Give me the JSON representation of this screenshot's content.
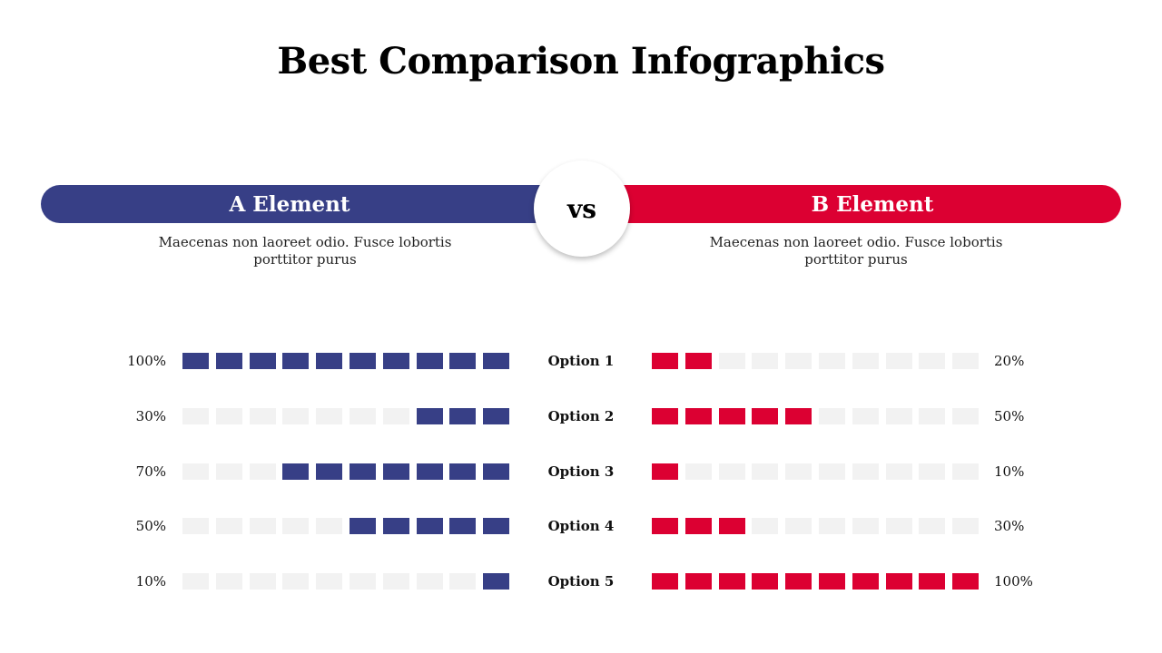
{
  "title": "Best Comparison Infographics",
  "colors": {
    "a": "#373f86",
    "b": "#dc0032",
    "empty": "#f2f2f2"
  },
  "vs_label": "vs",
  "element_a": {
    "label": "A Element",
    "description": "Maecenas non laoreet odio. Fusce lobortis porttitor purus"
  },
  "element_b": {
    "label": "B Element",
    "description": "Maecenas non laoreet odio. Fusce lobortis porttitor purus"
  },
  "rows": [
    {
      "option": "Option 1",
      "a_label": "100%",
      "a_value": 100,
      "b_label": "20%",
      "b_value": 20
    },
    {
      "option": "Option 2",
      "a_label": "30%",
      "a_value": 30,
      "b_label": "50%",
      "b_value": 50
    },
    {
      "option": "Option 3",
      "a_label": "70%",
      "a_value": 70,
      "b_label": "10%",
      "b_value": 10
    },
    {
      "option": "Option 4",
      "a_label": "50%",
      "a_value": 50,
      "b_label": "30%",
      "b_value": 30
    },
    {
      "option": "Option 5",
      "a_label": "10%",
      "a_value": 10,
      "b_label": "100%",
      "b_value": 100
    }
  ]
}
